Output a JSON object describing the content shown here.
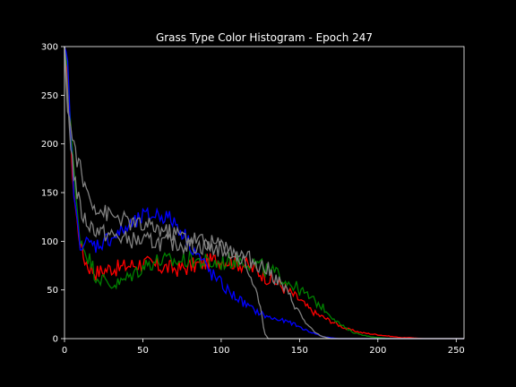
{
  "chart_data": {
    "type": "line",
    "title": "Grass Type Color Histogram - Epoch 247",
    "xlabel": "",
    "ylabel": "",
    "xlim": [
      0,
      255
    ],
    "ylim": [
      0,
      300
    ],
    "x_ticks": [
      0,
      50,
      100,
      150,
      200,
      250
    ],
    "y_ticks": [
      0,
      50,
      100,
      150,
      200,
      250,
      300
    ],
    "grid": false,
    "legend": "none",
    "colors": {
      "background": "#000000",
      "axes": "#ffffff",
      "red": "#ff0000",
      "green": "#008000",
      "blue": "#0000ff",
      "gray": "#808080"
    },
    "series": [
      {
        "color": "red",
        "x": [
          0,
          2,
          4,
          6,
          8,
          10,
          12,
          15,
          20,
          25,
          30,
          35,
          40,
          45,
          50,
          55,
          60,
          65,
          70,
          75,
          80,
          85,
          90,
          95,
          100,
          105,
          110,
          115,
          120,
          125,
          130,
          135,
          140,
          145,
          150,
          155,
          160,
          165,
          170,
          175,
          180,
          185,
          190,
          195,
          200,
          205,
          210,
          215,
          220,
          230,
          240,
          255
        ],
        "y": [
          300,
          270,
          200,
          150,
          120,
          100,
          85,
          75,
          68,
          70,
          73,
          72,
          75,
          76,
          78,
          76,
          74,
          73,
          72,
          72,
          74,
          76,
          78,
          80,
          82,
          80,
          78,
          76,
          72,
          68,
          62,
          58,
          52,
          46,
          40,
          32,
          26,
          22,
          18,
          14,
          10,
          8,
          6,
          5,
          4,
          3,
          2,
          1,
          1,
          0,
          0,
          0
        ]
      },
      {
        "color": "green",
        "x": [
          0,
          2,
          4,
          6,
          8,
          10,
          12,
          15,
          20,
          25,
          30,
          35,
          40,
          45,
          50,
          55,
          60,
          65,
          70,
          75,
          80,
          85,
          90,
          95,
          100,
          105,
          110,
          115,
          120,
          125,
          130,
          135,
          140,
          145,
          150,
          155,
          160,
          165,
          170,
          175,
          180,
          185,
          190,
          195,
          200,
          210,
          220,
          255
        ],
        "y": [
          300,
          280,
          220,
          170,
          130,
          105,
          95,
          85,
          65,
          60,
          55,
          57,
          62,
          68,
          74,
          78,
          80,
          80,
          79,
          80,
          82,
          80,
          78,
          77,
          78,
          80,
          81,
          80,
          78,
          74,
          70,
          66,
          62,
          56,
          50,
          44,
          38,
          32,
          24,
          16,
          10,
          6,
          4,
          2,
          1,
          0,
          0,
          0
        ]
      },
      {
        "color": "blue",
        "x": [
          0,
          2,
          4,
          6,
          8,
          10,
          12,
          15,
          20,
          25,
          30,
          35,
          40,
          45,
          50,
          55,
          60,
          65,
          70,
          75,
          80,
          85,
          90,
          95,
          100,
          105,
          110,
          115,
          120,
          125,
          130,
          135,
          140,
          145,
          150,
          155,
          160,
          165,
          170,
          175,
          255
        ],
        "y": [
          300,
          280,
          210,
          150,
          118,
          100,
          98,
          97,
          96,
          100,
          104,
          108,
          114,
          118,
          125,
          126,
          128,
          125,
          120,
          110,
          98,
          86,
          74,
          64,
          56,
          48,
          42,
          36,
          30,
          26,
          22,
          20,
          18,
          16,
          12,
          8,
          5,
          2,
          1,
          0,
          0
        ]
      },
      {
        "color": "gray",
        "x": [
          0,
          2,
          4,
          6,
          8,
          10,
          12,
          15,
          20,
          25,
          30,
          35,
          40,
          45,
          50,
          55,
          60,
          65,
          70,
          75,
          80,
          85,
          90,
          95,
          100,
          105,
          110,
          115,
          120,
          125,
          128,
          130,
          135,
          140,
          145,
          150,
          155,
          160,
          165,
          170,
          175,
          255
        ],
        "y": [
          300,
          240,
          215,
          200,
          185,
          175,
          160,
          150,
          135,
          130,
          126,
          124,
          120,
          118,
          115,
          115,
          113,
          110,
          108,
          106,
          104,
          102,
          100,
          98,
          96,
          92,
          86,
          78,
          60,
          30,
          5,
          0,
          0,
          0,
          0,
          0,
          0,
          0,
          0,
          0,
          0,
          0
        ]
      },
      {
        "color": "gray",
        "x": [
          0,
          2,
          4,
          6,
          8,
          10,
          12,
          15,
          20,
          25,
          30,
          35,
          40,
          45,
          50,
          55,
          60,
          65,
          70,
          75,
          80,
          85,
          90,
          95,
          100,
          105,
          110,
          115,
          120,
          125,
          130,
          135,
          140,
          145,
          150,
          155,
          160,
          165,
          170,
          175,
          255
        ],
        "y": [
          300,
          250,
          200,
          170,
          150,
          135,
          125,
          118,
          112,
          108,
          106,
          104,
          102,
          101,
          100,
          100,
          99,
          98,
          98,
          97,
          96,
          95,
          94,
          93,
          92,
          90,
          88,
          84,
          80,
          76,
          70,
          62,
          52,
          40,
          26,
          14,
          6,
          2,
          0,
          0,
          0
        ]
      }
    ]
  }
}
